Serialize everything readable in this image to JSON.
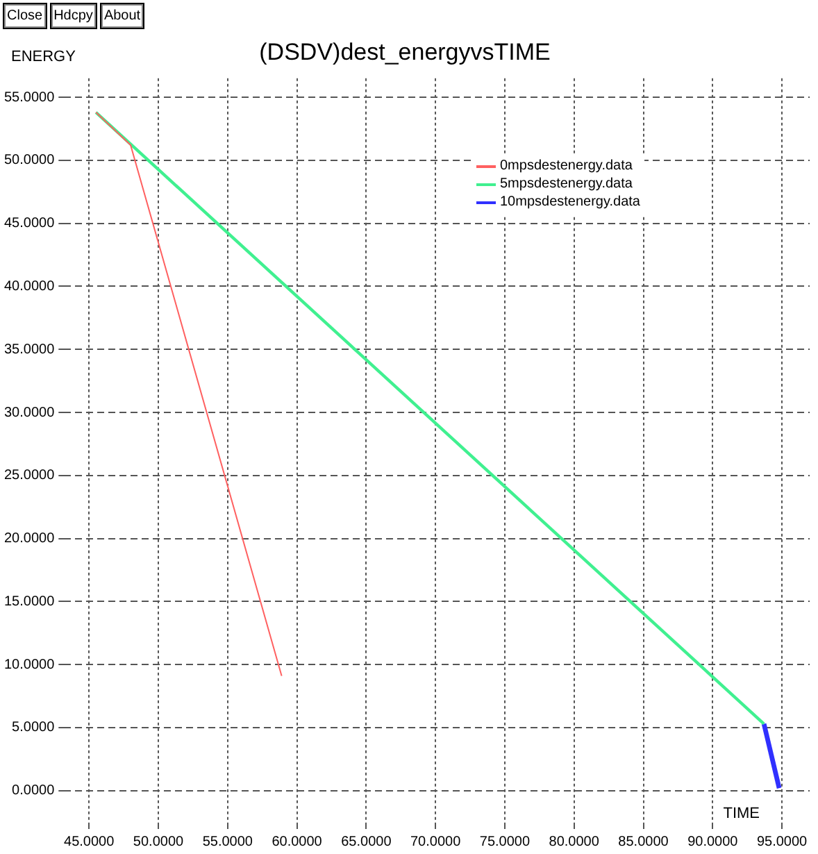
{
  "chart_data": {
    "type": "line",
    "title": "(DSDV)dest_energyvsTIME",
    "xlabel": "TIME",
    "ylabel": "ENERGY",
    "annotations": [
      "Close",
      "Hdcpy",
      "About"
    ],
    "xlim": [
      43.2,
      97.0
    ],
    "ylim": [
      -2.6,
      56.5
    ],
    "xticks": [
      {
        "value": 45,
        "label": "45.0000"
      },
      {
        "value": 50,
        "label": "50.0000"
      },
      {
        "value": 55,
        "label": "55.0000"
      },
      {
        "value": 60,
        "label": "60.0000"
      },
      {
        "value": 65,
        "label": "65.0000"
      },
      {
        "value": 70,
        "label": "70.0000"
      },
      {
        "value": 75,
        "label": "75.0000"
      },
      {
        "value": 80,
        "label": "80.0000"
      },
      {
        "value": 85,
        "label": "85.0000"
      },
      {
        "value": 90,
        "label": "90.0000"
      },
      {
        "value": 95,
        "label": "95.0000"
      }
    ],
    "yticks": [
      {
        "value": 0,
        "label": "0.0000"
      },
      {
        "value": 5,
        "label": "5.0000"
      },
      {
        "value": 10,
        "label": "10.0000"
      },
      {
        "value": 15,
        "label": "15.0000"
      },
      {
        "value": 20,
        "label": "20.0000"
      },
      {
        "value": 25,
        "label": "25.0000"
      },
      {
        "value": 30,
        "label": "30.0000"
      },
      {
        "value": 35,
        "label": "35.0000"
      },
      {
        "value": 40,
        "label": "40.0000"
      },
      {
        "value": 45,
        "label": "45.0000"
      },
      {
        "value": 50,
        "label": "50.0000"
      },
      {
        "value": 55,
        "label": "55.0000"
      }
    ],
    "grid": true,
    "legend": "top right",
    "marker": "none",
    "line_style": "solid",
    "series": [
      {
        "name": "0mpsdestenergy.data",
        "color": "#ff6060",
        "x": [
          45.5,
          48.0,
          58.9
        ],
        "values": [
          53.8,
          51.2,
          9.1
        ]
      },
      {
        "name": "5mpsdestenergy.data",
        "color": "#40f090",
        "x": [
          45.5,
          93.7
        ],
        "values": [
          53.8,
          5.3
        ]
      },
      {
        "name": "10mpsdestenergy.data",
        "color": "#3030ff",
        "x": [
          93.7,
          94.8
        ],
        "values": [
          5.3,
          0.2
        ]
      }
    ]
  }
}
